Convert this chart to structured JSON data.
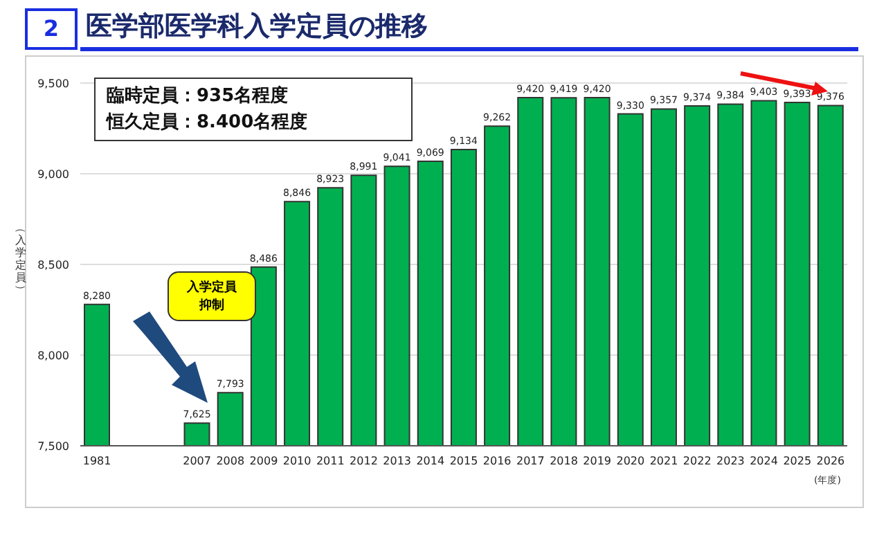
{
  "chart_data": {
    "type": "bar",
    "title": "医学部医学科入学定員の推移",
    "ylabel": "（入学定員）",
    "xlabel": "(年度)",
    "annotations": [
      "2",
      "臨時定員：935名程度",
      "恒久定員：8.400名程度",
      "入学定員抑制"
    ],
    "categories": [
      "1981",
      null,
      null,
      "2007",
      "2008",
      "2009",
      "2010",
      "2011",
      "2012",
      "2013",
      "2014",
      "2015",
      "2016",
      "2017",
      "2018",
      "2019",
      "2020",
      "2021",
      "2022",
      "2023",
      "2024",
      "2025",
      "2026"
    ],
    "values": [
      8280,
      null,
      null,
      7625,
      7793,
      8486,
      8846,
      8923,
      8991,
      9041,
      9069,
      9134,
      9262,
      9420,
      9419,
      9420,
      9330,
      9357,
      9374,
      9384,
      9403,
      9393,
      9376
    ],
    "value_labels": [
      "8,280",
      null,
      null,
      "7,625",
      "7,793",
      "8,486",
      "8,846",
      "8,923",
      "8,991",
      "9,041",
      "9,069",
      "9,134",
      "9,262",
      "9,420",
      "9,419",
      "9,420",
      "9,330",
      "9,357",
      "9,374",
      "9,384",
      "9,403",
      "9,393",
      "9,376"
    ],
    "color": "#00b050",
    "ylim": [
      7500,
      9500
    ],
    "yticks": [
      {
        "value": 7500,
        "label": "7,500"
      },
      {
        "value": 8000,
        "label": "8,000"
      },
      {
        "value": 8500,
        "label": "8,500"
      },
      {
        "value": 9000,
        "label": "9,000"
      },
      {
        "value": 9500,
        "label": "9,500"
      }
    ],
    "grid": "y",
    "legend": false
  }
}
